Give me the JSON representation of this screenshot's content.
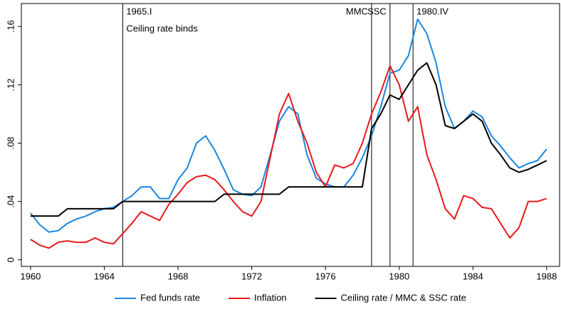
{
  "chart_data": {
    "type": "line",
    "x": [
      1960,
      1960.5,
      1961,
      1961.5,
      1962,
      1962.5,
      1963,
      1963.5,
      1964,
      1964.5,
      1965,
      1965.5,
      1966,
      1966.5,
      1967,
      1967.5,
      1968,
      1968.5,
      1969,
      1969.5,
      1970,
      1970.5,
      1971,
      1971.5,
      1972,
      1972.5,
      1973,
      1973.5,
      1974,
      1974.5,
      1975,
      1975.5,
      1976,
      1976.5,
      1977,
      1977.5,
      1978,
      1978.5,
      1979,
      1979.5,
      1980,
      1980.5,
      1981,
      1981.5,
      1982,
      1982.5,
      1983,
      1983.5,
      1984,
      1984.5,
      1985,
      1985.5,
      1986,
      1986.5,
      1987,
      1987.5,
      1988
    ],
    "series": [
      {
        "name": "Fed funds rate",
        "color": "#1a86e0",
        "values": [
          0.032,
          0.024,
          0.019,
          0.02,
          0.025,
          0.028,
          0.03,
          0.033,
          0.035,
          0.036,
          0.04,
          0.044,
          0.05,
          0.05,
          0.042,
          0.042,
          0.055,
          0.063,
          0.08,
          0.085,
          0.075,
          0.062,
          0.048,
          0.045,
          0.044,
          0.05,
          0.072,
          0.095,
          0.105,
          0.1,
          0.072,
          0.056,
          0.052,
          0.05,
          0.05,
          0.058,
          0.07,
          0.085,
          0.105,
          0.128,
          0.13,
          0.14,
          0.165,
          0.155,
          0.135,
          0.105,
          0.09,
          0.095,
          0.102,
          0.098,
          0.085,
          0.078,
          0.07,
          0.063,
          0.066,
          0.068,
          0.076
        ]
      },
      {
        "name": "Inflation",
        "color": "#e8191c",
        "values": [
          0.014,
          0.01,
          0.008,
          0.012,
          0.013,
          0.012,
          0.012,
          0.015,
          0.012,
          0.011,
          0.018,
          0.025,
          0.033,
          0.03,
          0.027,
          0.038,
          0.045,
          0.053,
          0.057,
          0.058,
          0.055,
          0.048,
          0.04,
          0.033,
          0.03,
          0.04,
          0.07,
          0.1,
          0.114,
          0.095,
          0.08,
          0.06,
          0.05,
          0.065,
          0.063,
          0.066,
          0.08,
          0.1,
          0.115,
          0.133,
          0.12,
          0.095,
          0.105,
          0.072,
          0.055,
          0.035,
          0.028,
          0.044,
          0.042,
          0.036,
          0.035,
          0.025,
          0.015,
          0.022,
          0.04,
          0.04,
          0.042
        ]
      },
      {
        "name": "Ceiling rate / MMC & SSC rate",
        "color": "#000000",
        "values": [
          0.03,
          0.03,
          0.03,
          0.03,
          0.035,
          0.035,
          0.035,
          0.035,
          0.035,
          0.035,
          0.04,
          0.04,
          0.04,
          0.04,
          0.04,
          0.04,
          0.04,
          0.04,
          0.04,
          0.04,
          0.04,
          0.045,
          0.045,
          0.045,
          0.045,
          0.045,
          0.045,
          0.045,
          0.05,
          0.05,
          0.05,
          0.05,
          0.05,
          0.05,
          0.05,
          0.05,
          0.05,
          0.09,
          0.1,
          0.113,
          0.11,
          0.12,
          0.13,
          0.135,
          0.12,
          0.092,
          0.09,
          0.095,
          0.1,
          0.095,
          0.08,
          0.072,
          0.063,
          0.06,
          0.062,
          0.065,
          0.068
        ]
      }
    ],
    "xlim": [
      1959.5,
      1988.7
    ],
    "ylim": [
      -0.0045,
      0.1757
    ],
    "xticks": [
      1960,
      1964,
      1968,
      1972,
      1976,
      1980,
      1984,
      1988
    ],
    "yticks": [
      0,
      {
        "value": 0.04,
        "label": ".04"
      },
      {
        "value": 0.08,
        "label": ".08"
      },
      {
        "value": 0.12,
        "label": ".12"
      },
      {
        "value": 0.16,
        "label": ".16"
      }
    ],
    "vlines": [
      {
        "x": 1965,
        "label": "1965.I"
      },
      {
        "x": 1978.5,
        "label": "MMC"
      },
      {
        "x": 1979.5,
        "label": "SSC"
      },
      {
        "x": 1980.75,
        "label": "1980.IV"
      }
    ],
    "annotation": "Ceiling rate binds",
    "legend": "bottom"
  }
}
